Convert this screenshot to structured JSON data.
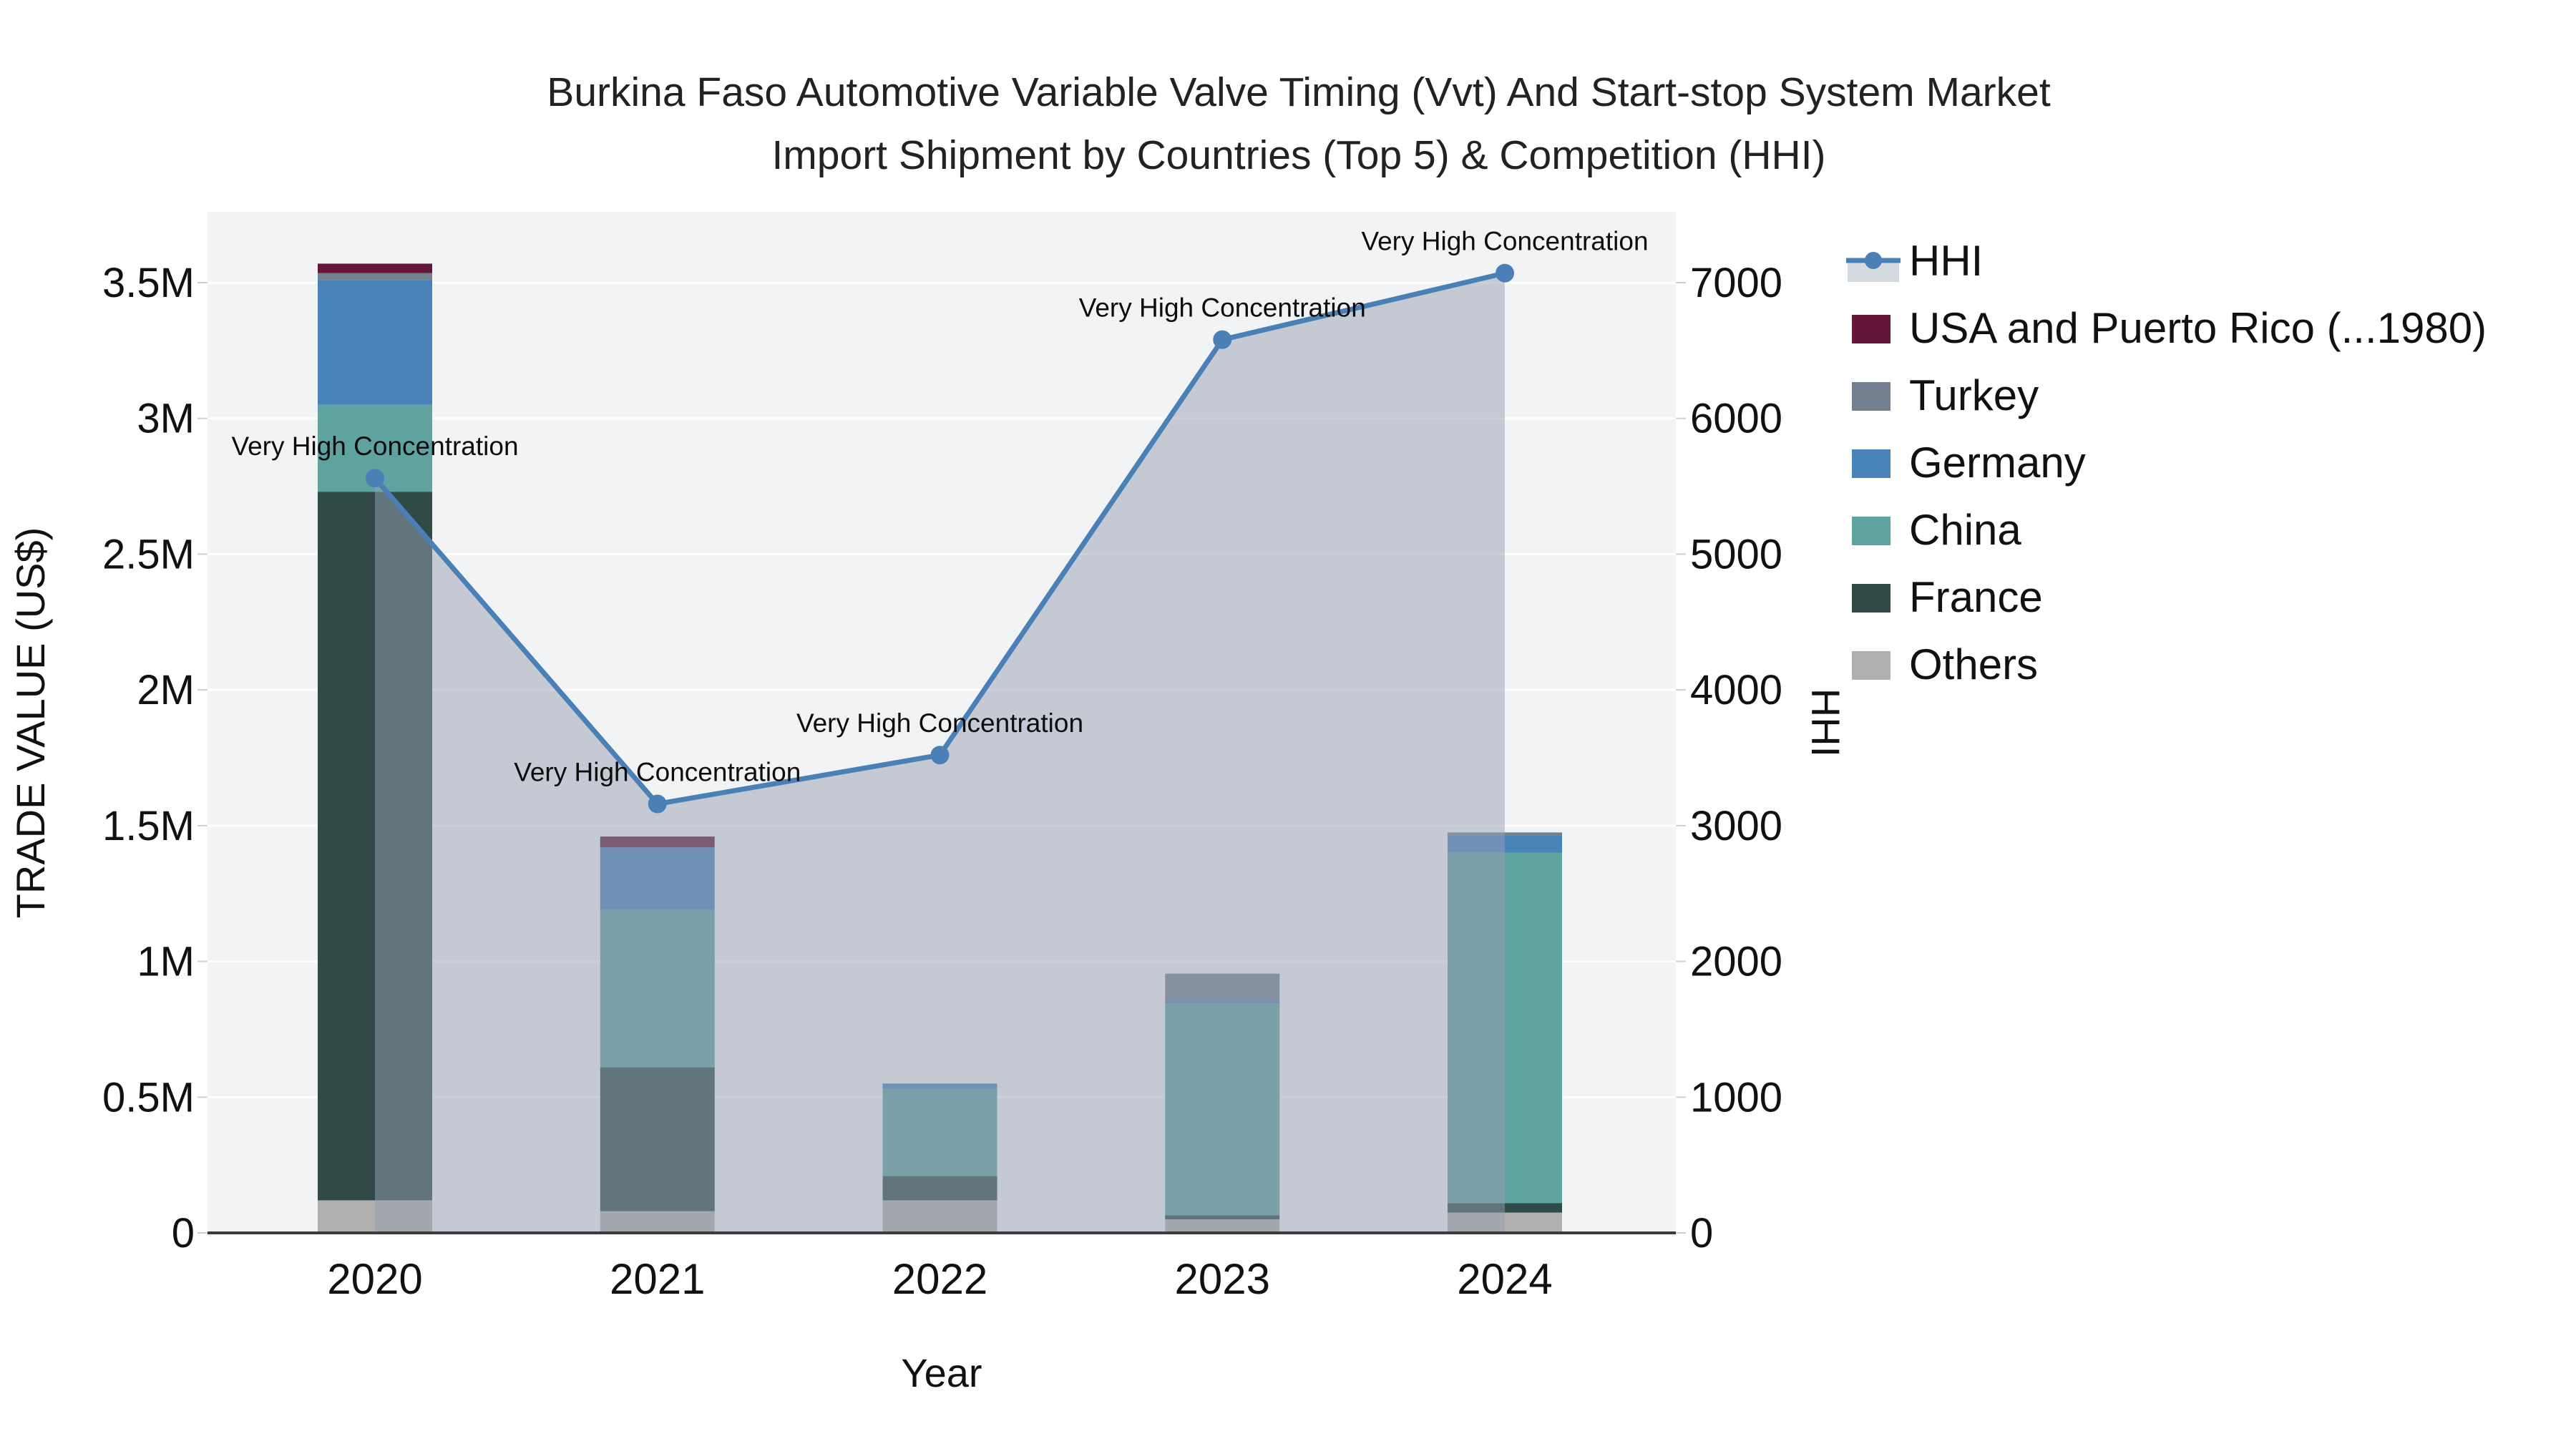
{
  "title": {
    "line1": "Burkina Faso Automotive Variable Valve Timing (Vvt) And Start-stop System Market",
    "line2": "Import Shipment by Countries (Top 5) & Competition (HHI)"
  },
  "axes": {
    "x": {
      "title": "Year",
      "ticks": [
        "2020",
        "2021",
        "2022",
        "2023",
        "2024"
      ]
    },
    "y_left": {
      "title": "TRADE VALUE (US$)",
      "ticks": [
        {
          "label": "0",
          "value": 0
        },
        {
          "label": "0.5M",
          "value": 500000
        },
        {
          "label": "1M",
          "value": 1000000
        },
        {
          "label": "1.5M",
          "value": 1500000
        },
        {
          "label": "2M",
          "value": 2000000
        },
        {
          "label": "2.5M",
          "value": 2500000
        },
        {
          "label": "3M",
          "value": 3000000
        },
        {
          "label": "3.5M",
          "value": 3500000
        }
      ],
      "range": [
        0,
        3500000
      ]
    },
    "y_right": {
      "title": "HHI",
      "ticks": [
        {
          "label": "0",
          "value": 0
        },
        {
          "label": "1000",
          "value": 1000
        },
        {
          "label": "2000",
          "value": 2000
        },
        {
          "label": "3000",
          "value": 3000
        },
        {
          "label": "4000",
          "value": 4000
        },
        {
          "label": "5000",
          "value": 5000
        },
        {
          "label": "6000",
          "value": 6000
        },
        {
          "label": "7000",
          "value": 7000
        }
      ],
      "range": [
        0,
        7000
      ]
    }
  },
  "legend": {
    "items": [
      {
        "label": "HHI",
        "type": "line",
        "color": "#4a80b5",
        "fill": "#d5dae0"
      },
      {
        "label": "USA and Puerto Rico (...1980)",
        "type": "box",
        "color": "#65173a"
      },
      {
        "label": "Turkey",
        "type": "box",
        "color": "#75808e"
      },
      {
        "label": "Germany",
        "type": "box",
        "color": "#4783b8"
      },
      {
        "label": "China",
        "type": "box",
        "color": "#5fa3a1"
      },
      {
        "label": "France",
        "type": "box",
        "color": "#2f4a47"
      },
      {
        "label": "Others",
        "type": "box",
        "color": "#b1b0af"
      }
    ]
  },
  "chart_data": {
    "type": "combo-stacked-bar-and-line-area",
    "x": [
      2020,
      2021,
      2022,
      2023,
      2024
    ],
    "bar_stack_order_bottom_to_top": [
      "Others",
      "France",
      "China",
      "Germany",
      "Turkey",
      "USA and Puerto Rico (...1980)"
    ],
    "bar_series": [
      {
        "name": "Others",
        "color": "#b1b0af",
        "values": [
          120000,
          80000,
          120000,
          50000,
          75000
        ]
      },
      {
        "name": "France",
        "color": "#2f4a47",
        "values": [
          2610000,
          530000,
          90000,
          15000,
          35000
        ]
      },
      {
        "name": "China",
        "color": "#5fa3a1",
        "values": [
          320000,
          580000,
          320000,
          780000,
          1290000
        ]
      },
      {
        "name": "Germany",
        "color": "#4783b8",
        "values": [
          460000,
          230000,
          20000,
          10000,
          65000
        ]
      },
      {
        "name": "Turkey",
        "color": "#75808e",
        "values": [
          25000,
          0,
          0,
          100000,
          10000
        ]
      },
      {
        "name": "USA and Puerto Rico (...1980)",
        "color": "#65173a",
        "values": [
          35000,
          40000,
          0,
          0,
          0
        ]
      }
    ],
    "bar_totals": [
      3570000,
      1460000,
      550000,
      955000,
      1475000
    ],
    "line_series": {
      "name": "HHI",
      "color": "#4a80b5",
      "area_fill": "rgba(150,160,178,0.5)",
      "values": [
        5560,
        3160,
        3520,
        6580,
        7070
      ]
    },
    "annotations": [
      "Very High Concentration",
      "Very High Concentration",
      "Very High Concentration",
      "Very High Concentration",
      "Very High Concentration"
    ],
    "ylim_left": [
      0,
      3500000
    ],
    "ylim_right": [
      0,
      7000
    ],
    "grid": true,
    "legend_position": "right"
  },
  "colors": {
    "page_bg": "#ffffff",
    "plot_bg": "#f2f3f4",
    "gridline": "#ffffff",
    "axis_line": "#3b3b3b",
    "tick_mark": "#d0d0d0"
  }
}
